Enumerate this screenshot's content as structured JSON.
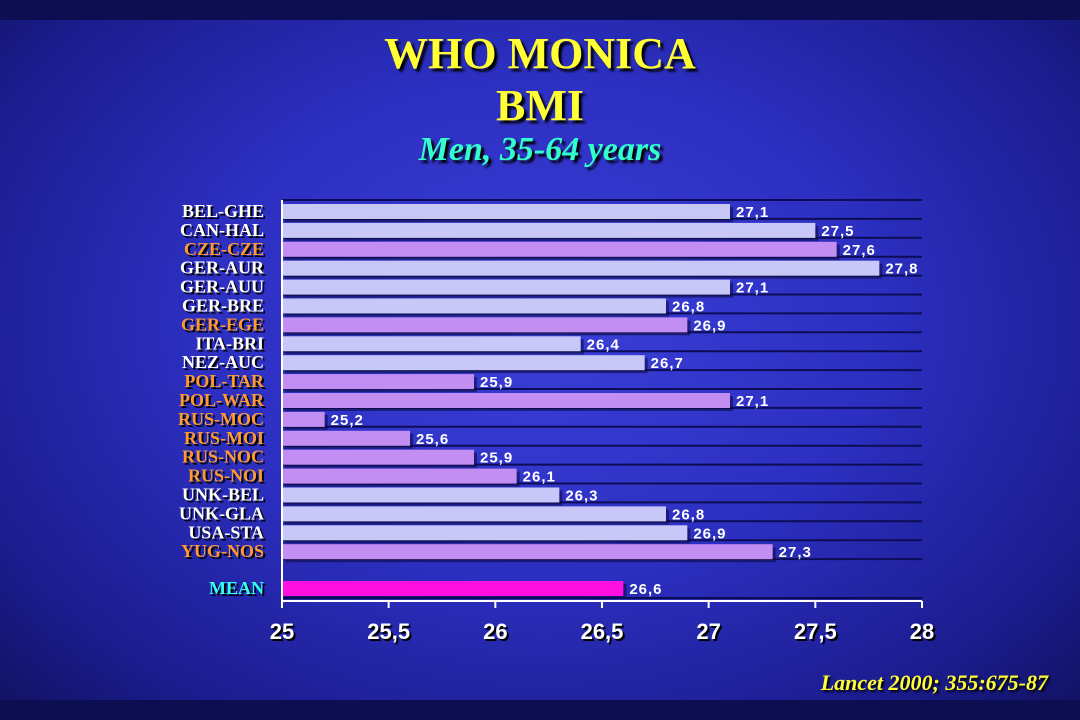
{
  "header": {
    "title_line1": "WHO MONICA",
    "title_line2": "BMI",
    "subtitle": "Men, 35-64 years"
  },
  "footer": {
    "citation": "Lancet 2000; 355:675-87"
  },
  "colors": {
    "bar_light": "#c8c8f8",
    "bar_purple": "#c38ef2",
    "bar_mean": "#ff10e0",
    "label_white": "#ffffff",
    "label_orange": "#ff9a33",
    "label_cyan": "#33ffee",
    "title_yellow": "#ffff33",
    "subtitle_cyan": "#33ffcc"
  },
  "chart_data": {
    "type": "bar",
    "orientation": "horizontal",
    "xlim": [
      25,
      28
    ],
    "xticks": [
      "25",
      "25,5",
      "26",
      "26,5",
      "27",
      "27,5",
      "28"
    ],
    "xtick_values": [
      25,
      25.5,
      26,
      26.5,
      27,
      27.5,
      28
    ],
    "grid": false,
    "categories": [
      "BEL-GHE",
      "CAN-HAL",
      "CZE-CZE",
      "GER-AUR",
      "GER-AUU",
      "GER-BRE",
      "GER-EGE",
      "ITA-BRI",
      "NEZ-AUC",
      "POL-TAR",
      "POL-WAR",
      "RUS-MOC",
      "RUS-MOI",
      "RUS-NOC",
      "RUS-NOI",
      "UNK-BEL",
      "UNK-GLA",
      "USA-STA",
      "YUG-NOS"
    ],
    "values": [
      27.1,
      27.5,
      27.6,
      27.8,
      27.1,
      26.8,
      26.9,
      26.4,
      26.7,
      25.9,
      27.1,
      25.2,
      25.6,
      25.9,
      26.1,
      26.3,
      26.8,
      26.9,
      27.3
    ],
    "value_labels": [
      "27,1",
      "27,5",
      "27,6",
      "27,8",
      "27,1",
      "26,8",
      "26,9",
      "26,4",
      "26,7",
      "25,9",
      "27,1",
      "25,2",
      "25,6",
      "25,9",
      "26,1",
      "26,3",
      "26,8",
      "26,9",
      "27,3"
    ],
    "highlighted": [
      false,
      false,
      true,
      false,
      false,
      false,
      true,
      false,
      false,
      true,
      true,
      true,
      true,
      true,
      true,
      false,
      false,
      false,
      true
    ],
    "mean": {
      "label": "MEAN",
      "value": 26.6,
      "value_label": "26,6"
    }
  }
}
